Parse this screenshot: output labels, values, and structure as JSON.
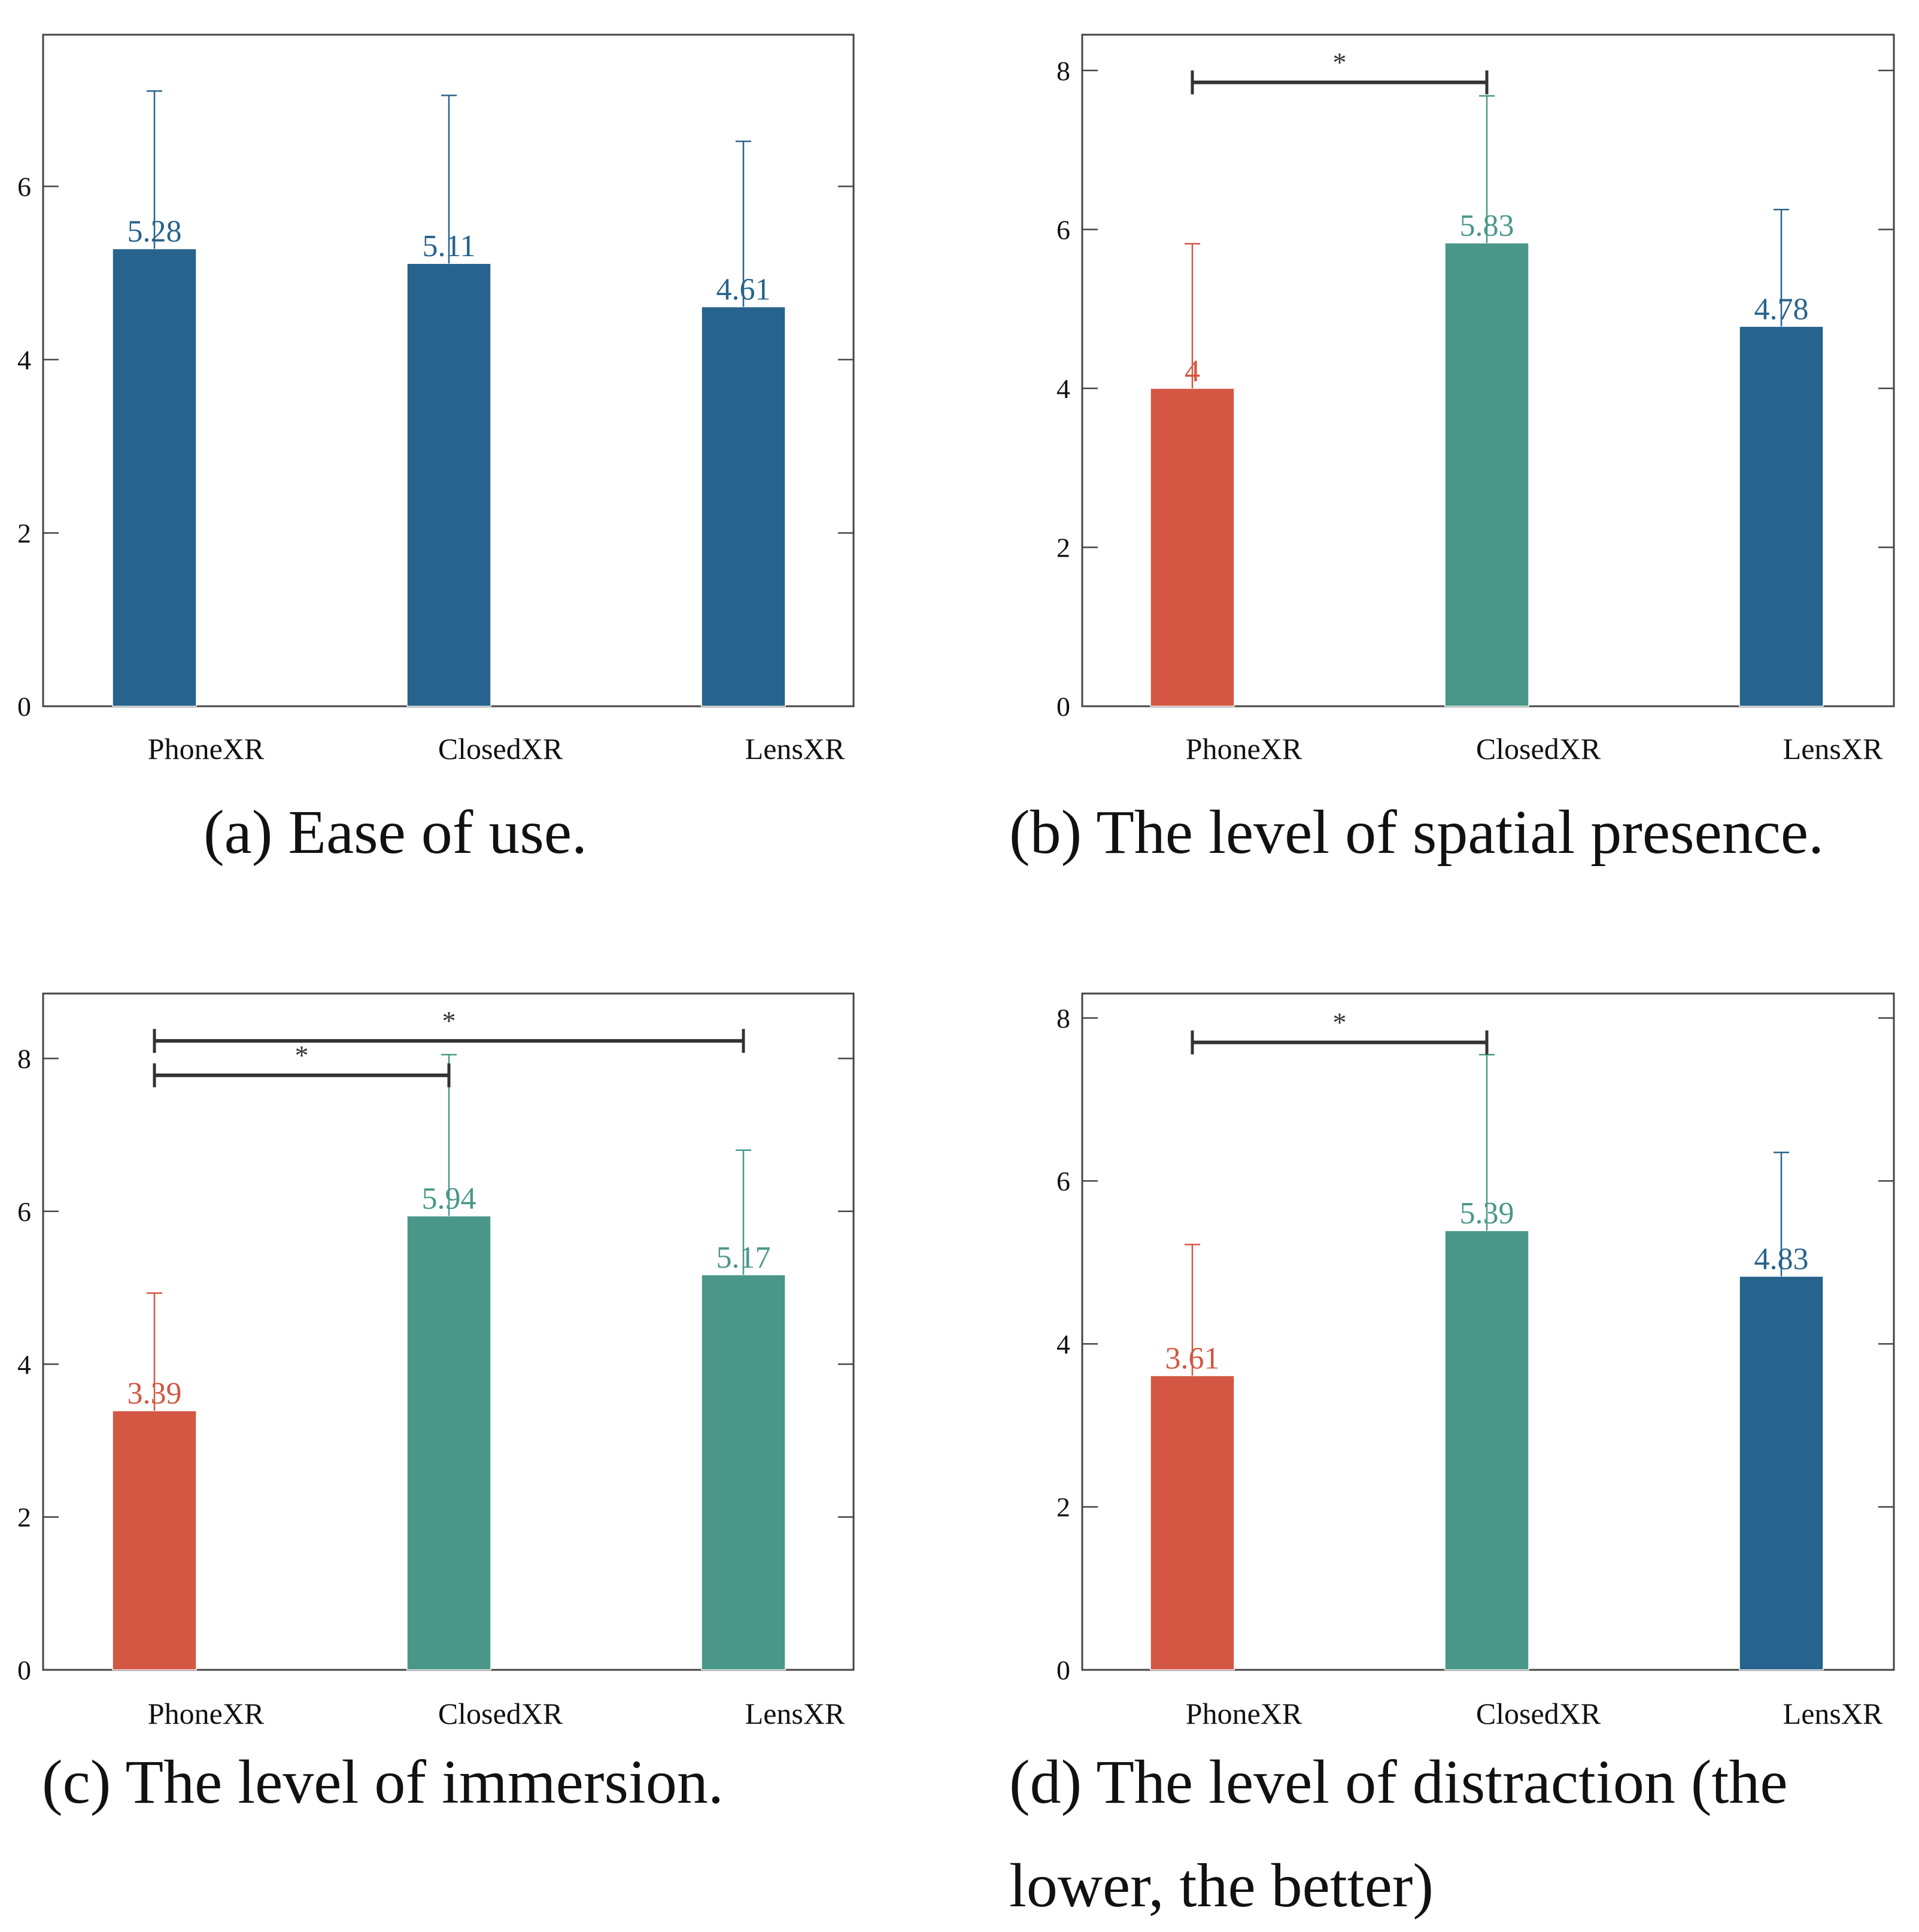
{
  "colors": {
    "red": "#d35742",
    "teal": "#4a978a",
    "blue": "#27638d",
    "axis": "#444444",
    "text": "#111111"
  },
  "chart_data": [
    {
      "type": "bar",
      "caption": "(a) Ease of use.",
      "categories": [
        "PhoneXR",
        "ClosedXR",
        "LensXR"
      ],
      "values": [
        5.28,
        5.11,
        4.61
      ],
      "value_labels": [
        "5.28",
        "5.11",
        "4.61"
      ],
      "error_upper": [
        7.1,
        7.05,
        6.52
      ],
      "bar_colors": [
        "blue",
        "blue",
        "blue"
      ],
      "yticks": [
        0,
        2,
        4,
        6
      ],
      "ylim": [
        0,
        7.75
      ],
      "significance": []
    },
    {
      "type": "bar",
      "caption": "(b) The level of spatial presence.",
      "categories": [
        "PhoneXR",
        "ClosedXR",
        "LensXR"
      ],
      "values": [
        4,
        5.83,
        4.78
      ],
      "value_labels": [
        "4",
        "5.83",
        "4.78"
      ],
      "error_upper": [
        5.82,
        7.68,
        6.25
      ],
      "bar_colors": [
        "red",
        "teal",
        "blue"
      ],
      "yticks": [
        0,
        2,
        4,
        6,
        8
      ],
      "ylim": [
        0,
        8.45
      ],
      "significance": [
        {
          "from": 0,
          "to": 1,
          "y": 7.85,
          "label": "*"
        }
      ]
    },
    {
      "type": "bar",
      "caption": "(c) The level of immersion.",
      "categories": [
        "PhoneXR",
        "ClosedXR",
        "LensXR"
      ],
      "values": [
        3.39,
        5.94,
        5.17
      ],
      "value_labels": [
        "3.39",
        "5.94",
        "5.17"
      ],
      "error_upper": [
        4.93,
        8.05,
        6.8
      ],
      "bar_colors": [
        "red",
        "teal",
        "teal"
      ],
      "yticks": [
        0,
        2,
        4,
        6,
        8
      ],
      "ylim": [
        0,
        8.85
      ],
      "significance": [
        {
          "from": 0,
          "to": 1,
          "y": 7.78,
          "label": "*"
        },
        {
          "from": 0,
          "to": 2,
          "y": 8.23,
          "label": "*"
        }
      ]
    },
    {
      "type": "bar",
      "caption": "(d) The level of distraction (the lower, the better)",
      "categories": [
        "PhoneXR",
        "ClosedXR",
        "LensXR"
      ],
      "values": [
        3.61,
        5.39,
        4.83
      ],
      "value_labels": [
        "3.61",
        "5.39",
        "4.83"
      ],
      "error_upper": [
        5.22,
        7.55,
        6.35
      ],
      "bar_colors": [
        "red",
        "teal",
        "blue"
      ],
      "yticks": [
        0,
        2,
        4,
        6,
        8
      ],
      "ylim": [
        0,
        8.3
      ],
      "significance": [
        {
          "from": 0,
          "to": 1,
          "y": 7.7,
          "label": "*"
        }
      ]
    }
  ]
}
